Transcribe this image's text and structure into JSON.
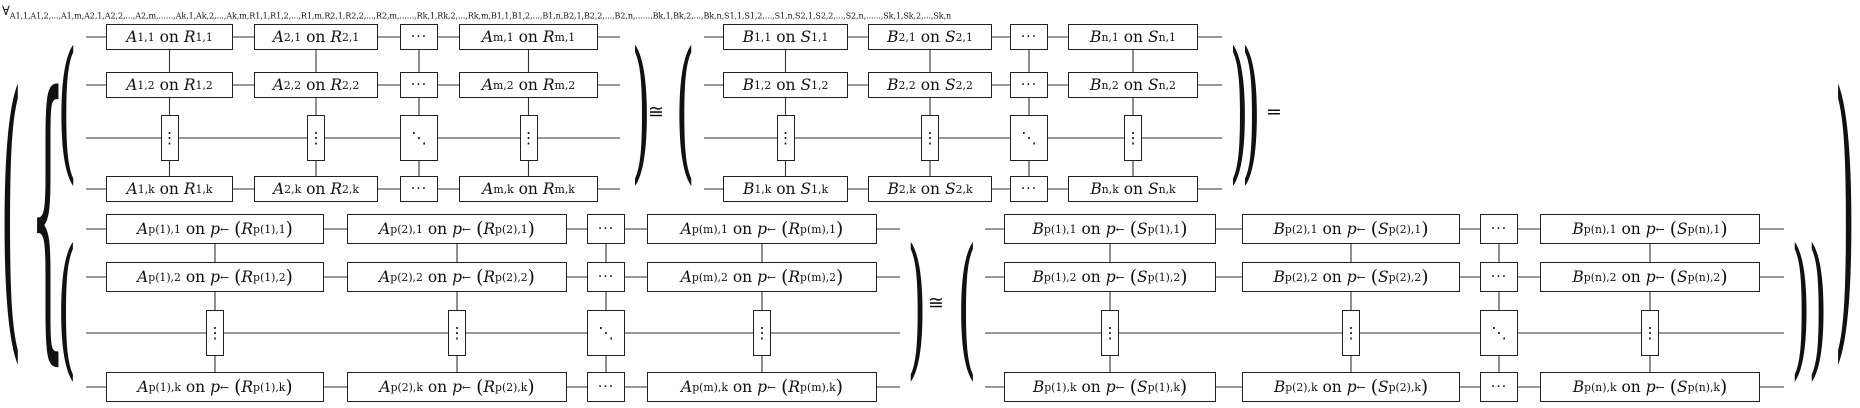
{
  "quantifier": {
    "symbol": "∀",
    "variables": "A1,1,A1,2,...,A1,m,A2,1,A2,2,...,A2,m,......,Ak,1,Ak,2,...,Ak,m,R1,1,R1,2,...,R1,m,R2,1,R2,2,...,R2,m,......,Rk,1,Rk,2,...,Rk,m,B1,1,B1,2,...,B1,n,B2,1,B2,2,...,B2,n,......,Bk,1,Bk,2,...,Bk,n,S1,1,S1,2,...,S1,n,S2,1,S2,2,...,S2,n,......,Sk,1,Sk,2,...,Sk,n"
  },
  "relations": {
    "iso": "≅",
    "eq": "="
  },
  "top_left": {
    "rows": [
      [
        "A1,1 on R1,1",
        "A2,1 on R2,1",
        "···",
        "Am,1 on Rm,1"
      ],
      [
        "A1,2 on R1,2",
        "A2,2 on R2,2",
        "···",
        "Am,2 on Rm,2"
      ],
      [
        "⋮",
        "⋮",
        "⋱",
        "⋮"
      ],
      [
        "A1,k on R1,k",
        "A2,k on R2,k",
        "···",
        "Am,k on Rm,k"
      ]
    ]
  },
  "top_right": {
    "rows": [
      [
        "B1,1 on S1,1",
        "B2,1 on S2,1",
        "···",
        "Bn,1 on Sn,1"
      ],
      [
        "B1,2 on S1,2",
        "B2,2 on S2,2",
        "···",
        "Bn,2 on Sn,2"
      ],
      [
        "⋮",
        "⋮",
        "⋱",
        "⋮"
      ],
      [
        "B1,k on S1,k",
        "B2,k on S2,k",
        "···",
        "Bn,k on Sn,k"
      ]
    ]
  },
  "bottom_left": {
    "rows": [
      [
        "Ap(1),1 on p← (Rp(1),1)",
        "Ap(2),1 on p← (Rp(2),1)",
        "···",
        "Ap(m),1 on p← (Rp(m),1)"
      ],
      [
        "Ap(1),2 on p← (Rp(1),2)",
        "Ap(2),2 on p← (Rp(2),2)",
        "···",
        "Ap(m),2 on p← (Rp(m),2)"
      ],
      [
        "⋮",
        "⋮",
        "⋱",
        "⋮"
      ],
      [
        "Ap(1),k on p← (Rp(1),k)",
        "Ap(2),k on p← (Rp(2),k)",
        "···",
        "Ap(m),k on p← (Rp(m),k)"
      ]
    ]
  },
  "bottom_right": {
    "rows": [
      [
        "Bp(1),1 on p← (Sp(1),1)",
        "Bp(2),1 on p← (Sp(2),1)",
        "···",
        "Bp(n),1 on p← (Sp(n),1)"
      ],
      [
        "Bp(1),2 on p← (Sp(1),2)",
        "Bp(2),2 on p← (Sp(2),2)",
        "···",
        "Bp(n),2 on p← (Sp(n),2)"
      ],
      [
        "⋮",
        "⋮",
        "⋱",
        "⋮"
      ],
      [
        "Bp(1),k on p← (Sp(1),k)",
        "Bp(2),k on p← (Sp(2),k)",
        "···",
        "Bp(n),k on p← (Sp(n),k)"
      ]
    ]
  }
}
